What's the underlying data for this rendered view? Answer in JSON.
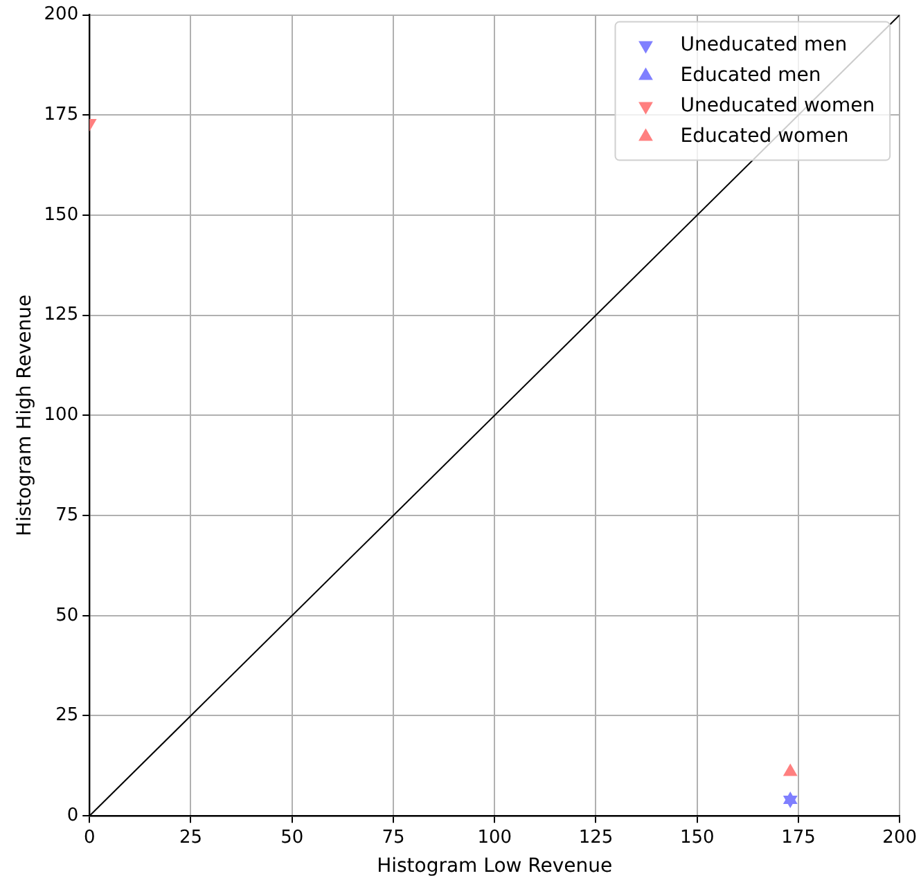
{
  "chart_data": {
    "type": "scatter",
    "xlabel": "Histogram Low Revenue",
    "ylabel": "Histogram High Revenue",
    "xlim": [
      0,
      200
    ],
    "ylim": [
      0,
      200
    ],
    "xticks": [
      0,
      25,
      50,
      75,
      100,
      125,
      150,
      175,
      200
    ],
    "yticks": [
      0,
      25,
      50,
      75,
      100,
      125,
      150,
      175,
      200
    ],
    "grid": true,
    "legend": "top right",
    "series": [
      {
        "name": "Uneducated men",
        "color": "#7f7fff",
        "marker": "triangle-down",
        "x": [
          173
        ],
        "values": [
          4
        ]
      },
      {
        "name": "Educated men",
        "color": "#7f7fff",
        "marker": "triangle",
        "x": [
          173
        ],
        "values": [
          4
        ]
      },
      {
        "name": "Uneducated women",
        "color": "#ff7f7f",
        "marker": "triangle-down",
        "x": [
          0
        ],
        "values": [
          173
        ]
      },
      {
        "name": "Educated women",
        "color": "#ff7f7f",
        "marker": "triangle",
        "x": [
          173
        ],
        "values": [
          11
        ]
      },
      {
        "type": "line",
        "color": "#000000",
        "x": [
          0,
          200
        ],
        "values": [
          0,
          200
        ]
      }
    ]
  }
}
